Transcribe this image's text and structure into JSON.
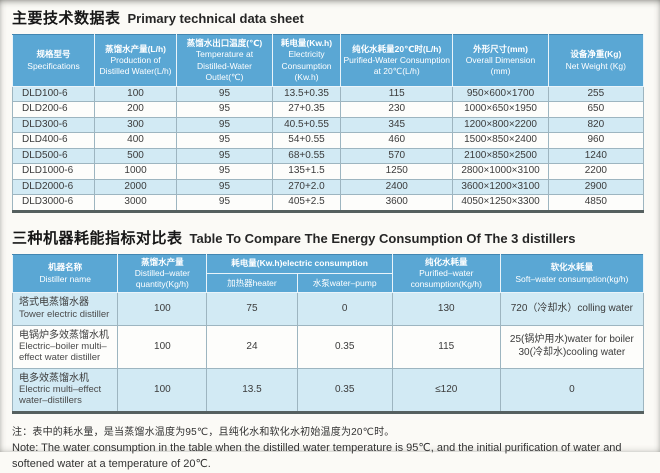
{
  "colors": {
    "header_bg": "#5aa7d4",
    "stripe": "#d2eaf4"
  },
  "section1": {
    "title_zh": "主要技术数据表",
    "title_en": "Primary technical data sheet"
  },
  "table1": {
    "headers": [
      {
        "zh": "规格型号",
        "en": "Specifications"
      },
      {
        "zh": "蒸馏水产量(L/h)",
        "en": "Production of Distilled Water(L/h)"
      },
      {
        "zh": "蒸馏水出口温度(℃)",
        "en": "Temperature at Distilled-Water Outlet(℃)"
      },
      {
        "zh": "耗电量(Kw.h)",
        "en": "Electricity Consumption (Kw.h)"
      },
      {
        "zh": "纯化水耗量20℃时(L/h)",
        "en": "Purified-Water Consumption at 20℃(L/h)"
      },
      {
        "zh": "外形尺寸(mm)",
        "en": "Overall Dimension (mm)"
      },
      {
        "zh": "设备净重(Kg)",
        "en": "Net Weight (Kg)"
      }
    ],
    "rows": [
      [
        "DLD100-6",
        "100",
        "95",
        "13.5+0.35",
        "115",
        "950×600×1700",
        "255"
      ],
      [
        "DLD200-6",
        "200",
        "95",
        "27+0.35",
        "230",
        "1000×650×1950",
        "650"
      ],
      [
        "DLD300-6",
        "300",
        "95",
        "40.5+0.55",
        "345",
        "1200×800×2200",
        "820"
      ],
      [
        "DLD400-6",
        "400",
        "95",
        "54+0.55",
        "460",
        "1500×850×2400",
        "960"
      ],
      [
        "DLD500-6",
        "500",
        "95",
        "68+0.55",
        "570",
        "2100×850×2500",
        "1240"
      ],
      [
        "DLD1000-6",
        "1000",
        "95",
        "135+1.5",
        "1250",
        "2800×1000×3100",
        "2200"
      ],
      [
        "DLD2000-6",
        "2000",
        "95",
        "270+2.0",
        "2400",
        "3600×1200×3100",
        "2900"
      ],
      [
        "DLD3000-6",
        "3000",
        "95",
        "405+2.5",
        "3600",
        "4050×1250×3300",
        "4850"
      ]
    ]
  },
  "section2": {
    "title_zh": "三种机器耗能指标对比表",
    "title_en": "Table To Compare The Energy Consumption Of The 3 distillers"
  },
  "table2": {
    "headers": {
      "name_zh": "机器名称",
      "name_en": "Distiller name",
      "quantity_zh": "蒸馏水产量",
      "quantity_en": "Distilled–water quantity(Kg/h)",
      "electric_group": "耗电量(Kw.h)electric consumption",
      "heater": "加热器heater",
      "pump": "水泵water–pump",
      "purified_zh": "纯化水耗量",
      "purified_en": "Purified–water consumption(Kg/h)",
      "soft_zh": "软化水耗量",
      "soft_en": "Soft–water consumption(kg/h)"
    },
    "rows": [
      {
        "name_zh": "塔式电蒸馏水器",
        "name_en": "Tower electric distiller",
        "values": [
          "100",
          "75",
          "0",
          "130",
          "720（冷却水）colling water"
        ]
      },
      {
        "name_zh": "电锅炉多效蒸馏水机",
        "name_en": "Electric–boiler multi–effect water distiller",
        "values": [
          "100",
          "24",
          "0.35",
          "115",
          "25(锅炉用水)water for boiler\n30(冷却水)cooling water"
        ]
      },
      {
        "name_zh": "电多效蒸馏水机",
        "name_en": "Electric multi–effect water–distillers",
        "values": [
          "100",
          "13.5",
          "0.35",
          "≤120",
          "0"
        ]
      }
    ]
  },
  "note": {
    "line_zh": "注：表中的耗水量，是当蒸馏水温度为95℃，且纯化水和软化水初始温度为20℃时。",
    "line_en": "Note: The water consumption in the table when the distilled water temperature is 95℃, and the initial purification of water and softened water at a temperature of 20℃."
  }
}
